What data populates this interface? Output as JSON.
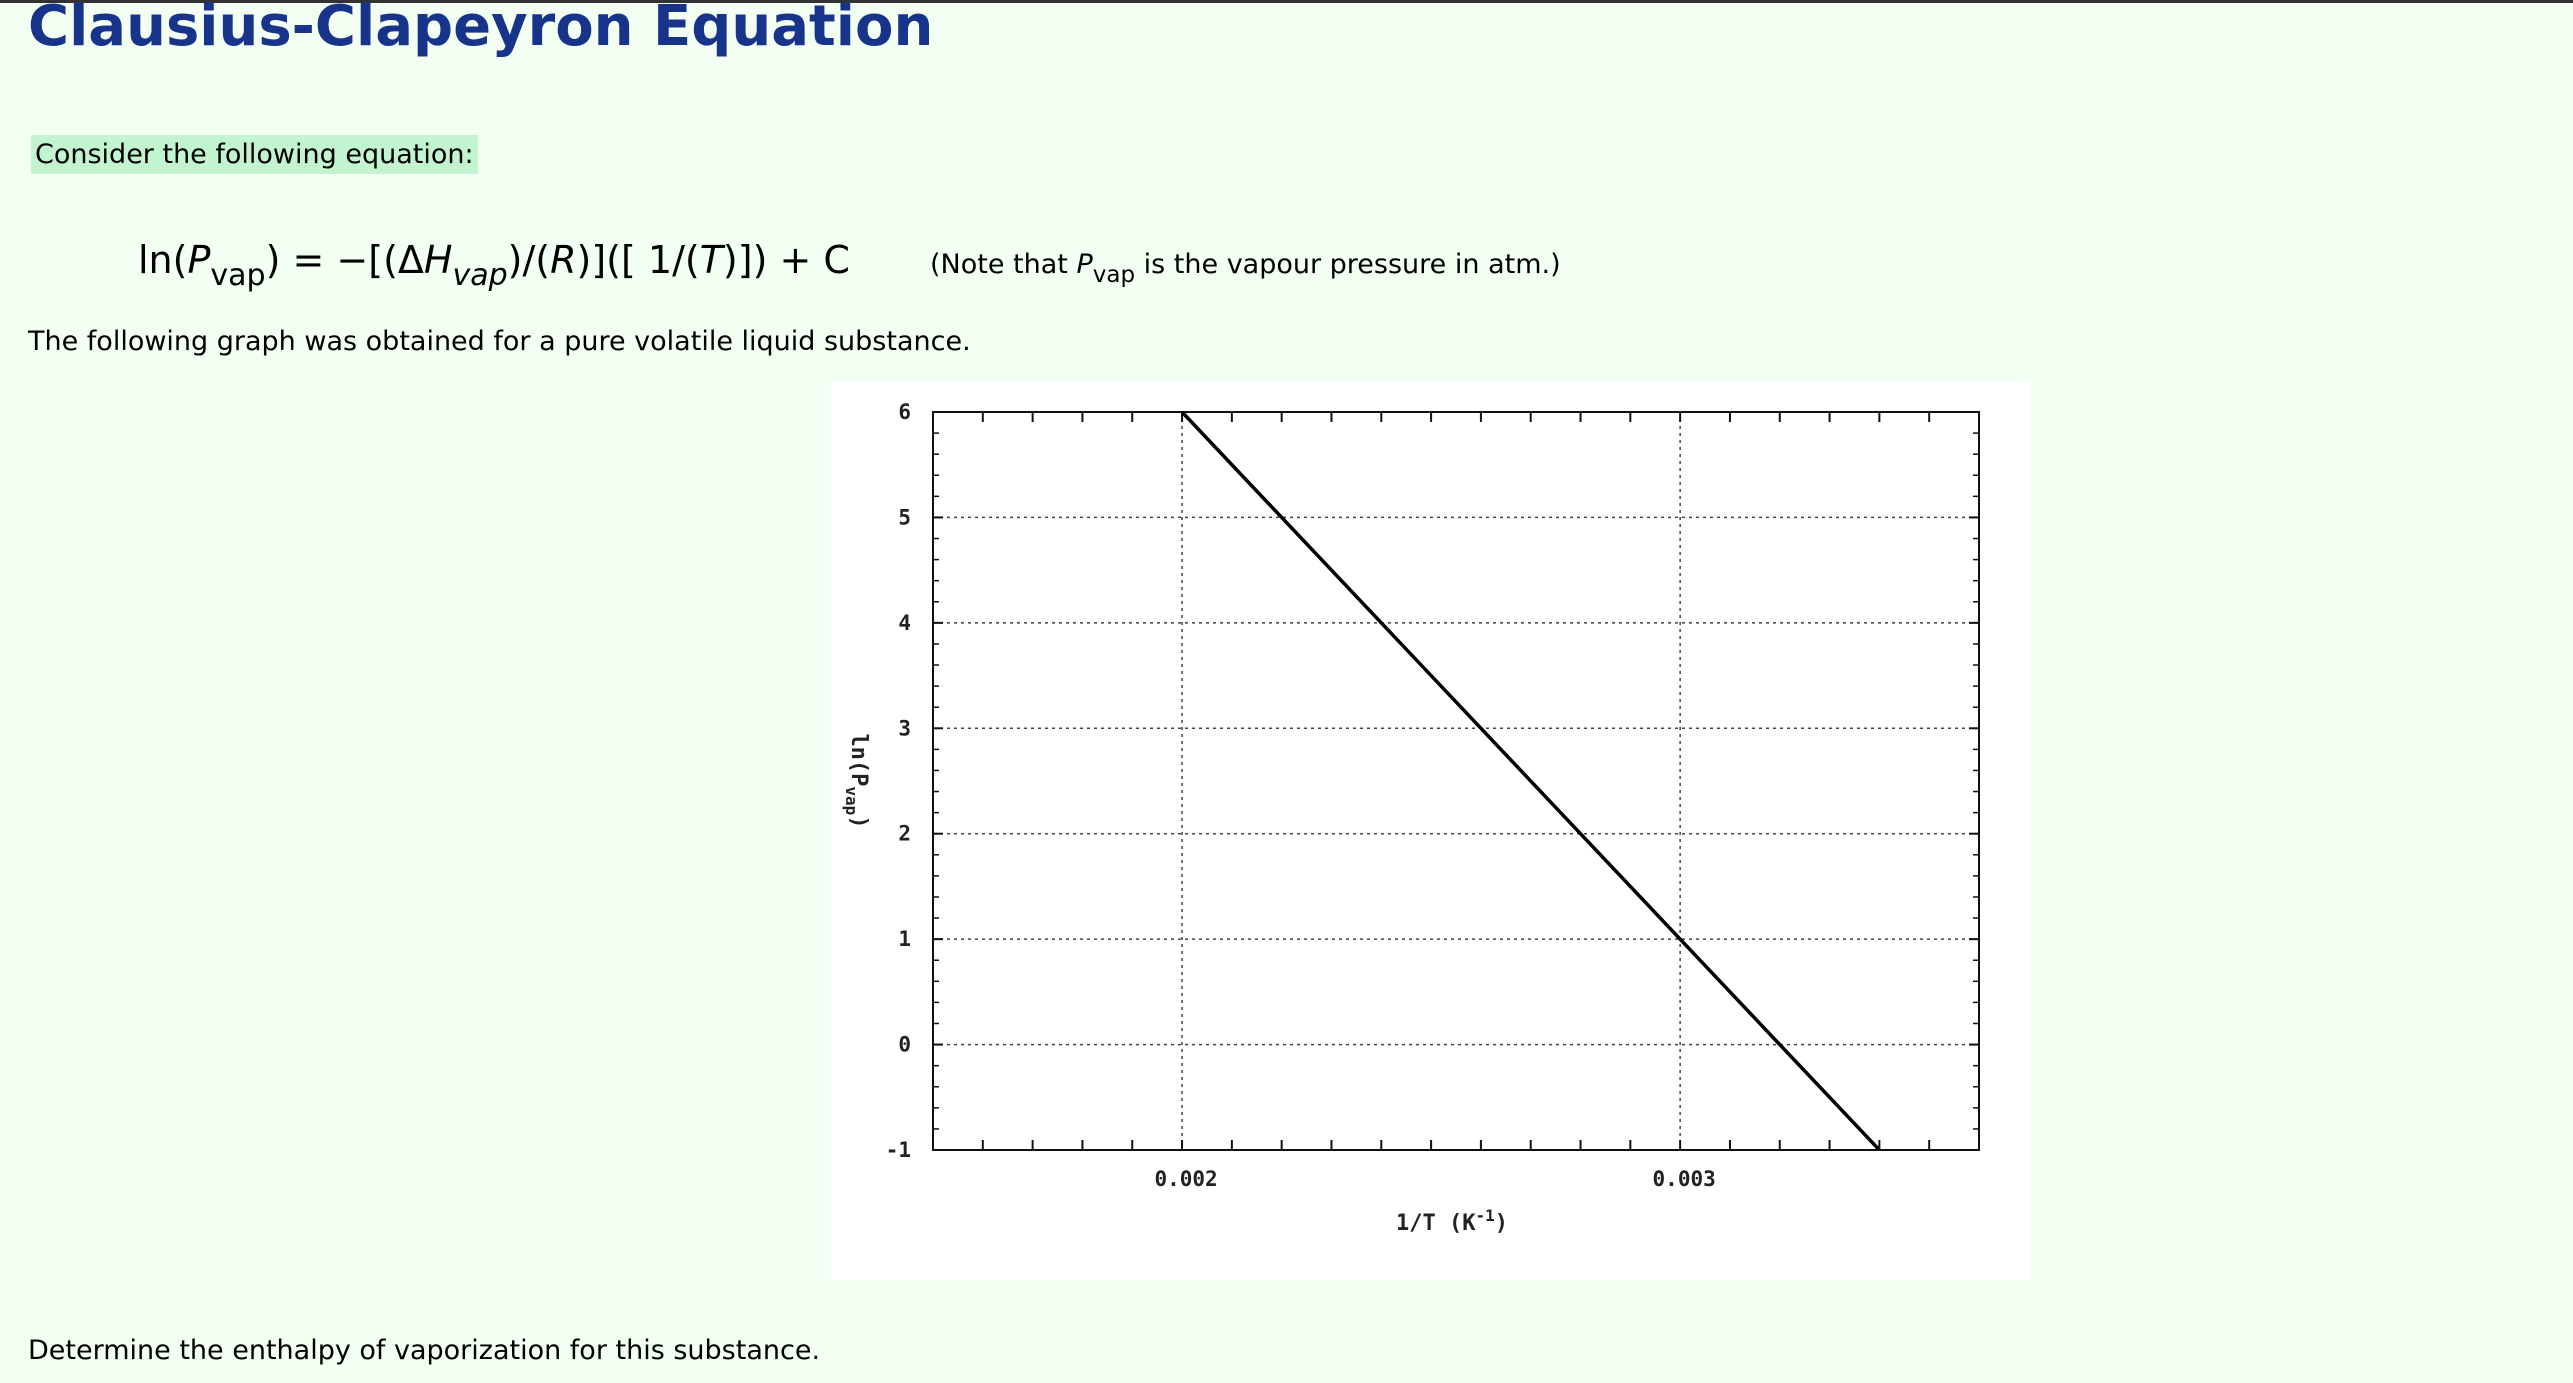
{
  "page": {
    "title": "Clausius-Clapeyron Equation",
    "prompt": "Consider the following equation:",
    "equation": {
      "ln": "ln(",
      "p": "P",
      "vap_sub": "vap",
      "after_p": ") = −[(Δ",
      "h": "H",
      "after_h": ")/(",
      "r": "R",
      "mid": ")]([ 1/(",
      "t": "T",
      "end": ")]) + C"
    },
    "note": {
      "before": "(Note that ",
      "p": "P",
      "vap_sub": "vap",
      "after": " is the vapour pressure in atm.)"
    },
    "graph_intro": "The following graph was obtained for a pure volatile liquid substance.",
    "question": "Determine the enthalpy of vaporization for this substance."
  },
  "chart_data": {
    "type": "line",
    "xlabel": "1/T",
    "xlabel_unit_base": "(K",
    "xlabel_unit_exp": "-1",
    "xlabel_unit_close": ")",
    "ylabel": "ln(P",
    "ylabel_sub": "vap",
    "ylabel_close": ")",
    "xlim": [
      0.0015,
      0.0036
    ],
    "ylim": [
      -1,
      6
    ],
    "x_ticks": [
      {
        "value": 0.002,
        "label": "0.002"
      },
      {
        "value": 0.003,
        "label": "0.003"
      }
    ],
    "y_ticks": [
      {
        "value": -1,
        "label": "-1"
      },
      {
        "value": 0,
        "label": "0"
      },
      {
        "value": 1,
        "label": "1"
      },
      {
        "value": 2,
        "label": "2"
      },
      {
        "value": 3,
        "label": "3"
      },
      {
        "value": 4,
        "label": "4"
      },
      {
        "value": 5,
        "label": "5"
      },
      {
        "value": 6,
        "label": "6"
      }
    ],
    "grid": true,
    "series": [
      {
        "values": [
          [
            0.002,
            6.0
          ],
          [
            0.0034,
            -1.0
          ]
        ]
      }
    ]
  }
}
